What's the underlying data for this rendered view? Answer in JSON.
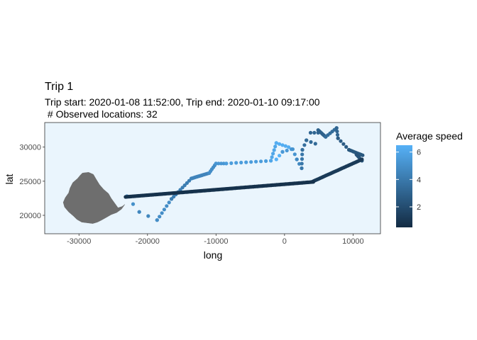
{
  "chart_data": {
    "type": "scatter",
    "title": "Trip 1",
    "subtitle_line1": "Trip start: 2020-01-08 11:52:00, Trip end: 2020-01-10 09:17:00",
    "subtitle_line2": " # Observed locations: 32",
    "xlabel": "long",
    "ylabel": "lat",
    "xlim": [
      -35000,
      14000
    ],
    "ylim": [
      17300,
      33600
    ],
    "x_ticks": [
      -30000,
      -20000,
      -10000,
      0,
      10000
    ],
    "x_tick_labels": [
      "-30000",
      "-20000",
      "-10000",
      "0",
      "10000"
    ],
    "y_ticks": [
      20000,
      25000,
      30000
    ],
    "y_tick_labels": [
      "20000",
      "25000",
      "30000"
    ],
    "grid": false,
    "legend": {
      "title": "Average speed",
      "placement": "right",
      "range": [
        0.5,
        6.5
      ],
      "ticks": [
        2,
        4,
        6
      ],
      "tick_labels": [
        "2",
        "4",
        "6"
      ],
      "color_low": "#132B43",
      "color_high": "#56B1F7"
    },
    "colors": {
      "panel_background": "#EAF5FD",
      "panel_border": "#333333",
      "landmass": "#6E6E6E"
    },
    "landmass_outline": [
      [
        -29500,
        26200
      ],
      [
        -28600,
        26300
      ],
      [
        -27900,
        26000
      ],
      [
        -27500,
        25300
      ],
      [
        -27000,
        24500
      ],
      [
        -26400,
        23800
      ],
      [
        -25700,
        23200
      ],
      [
        -25300,
        22500
      ],
      [
        -24800,
        21800
      ],
      [
        -24300,
        21100
      ],
      [
        -23700,
        21300
      ],
      [
        -23300,
        21600
      ],
      [
        -23800,
        20900
      ],
      [
        -24500,
        20400
      ],
      [
        -25300,
        20100
      ],
      [
        -26000,
        19700
      ],
      [
        -26700,
        19300
      ],
      [
        -27300,
        19000
      ],
      [
        -28000,
        18800
      ],
      [
        -28800,
        18900
      ],
      [
        -29600,
        19000
      ],
      [
        -30300,
        19400
      ],
      [
        -30800,
        19900
      ],
      [
        -31500,
        20500
      ],
      [
        -32100,
        21200
      ],
      [
        -32300,
        21900
      ],
      [
        -32000,
        22600
      ],
      [
        -31500,
        23300
      ],
      [
        -31300,
        24000
      ],
      [
        -30900,
        24800
      ],
      [
        -30200,
        25400
      ],
      [
        -29800,
        25900
      ]
    ],
    "track_segments": [
      {
        "from": [
          -23000,
          22800
        ],
        "to": [
          -21200,
          20500
        ],
        "speed": 5.0,
        "n": 3
      },
      {
        "from": [
          -21200,
          20500
        ],
        "to": [
          -18600,
          19300
        ],
        "speed": 4.6,
        "n": 3
      },
      {
        "from": [
          -18600,
          19300
        ],
        "to": [
          -16500,
          22400
        ],
        "speed": 4.9,
        "n": 7
      },
      {
        "from": [
          -16500,
          22400
        ],
        "to": [
          -13600,
          25400
        ],
        "speed": 4.2,
        "n": 10
      },
      {
        "from": [
          -13600,
          25400
        ],
        "to": [
          -11000,
          26200
        ],
        "speed": 4.5,
        "n": 16
      },
      {
        "from": [
          -11000,
          26200
        ],
        "to": [
          -10000,
          27600
        ],
        "speed": 4.9,
        "n": 6
      },
      {
        "from": [
          -10000,
          27600
        ],
        "to": [
          -8500,
          27600
        ],
        "speed": 5.3,
        "n": 5
      },
      {
        "from": [
          -8500,
          27600
        ],
        "to": [
          -2000,
          28000
        ],
        "speed": 5.6,
        "n": 10
      },
      {
        "from": [
          -2000,
          28000
        ],
        "to": [
          -1200,
          30600
        ],
        "speed": 6.0,
        "n": 6
      },
      {
        "from": [
          -1200,
          30600
        ],
        "to": [
          600,
          30000
        ],
        "speed": 6.3,
        "n": 5
      },
      {
        "from": [
          -1200,
          28200
        ],
        "to": [
          -300,
          29300
        ],
        "speed": 6.5,
        "n": 3
      },
      {
        "from": [
          -300,
          29300
        ],
        "to": [
          1000,
          29700
        ],
        "speed": 5.4,
        "n": 3
      },
      {
        "from": [
          1200,
          29700
        ],
        "to": [
          1800,
          28200
        ],
        "speed": 5.2,
        "n": 3
      },
      {
        "from": [
          1800,
          28200
        ],
        "to": [
          2500,
          26900
        ],
        "speed": 4.7,
        "n": 3
      },
      {
        "from": [
          2500,
          26900
        ],
        "to": [
          2600,
          29600
        ],
        "speed": 3.9,
        "n": 5
      },
      {
        "from": [
          2600,
          29600
        ],
        "to": [
          3200,
          31000
        ],
        "speed": 3.5,
        "n": 3
      },
      {
        "from": [
          3200,
          31000
        ],
        "to": [
          4500,
          30500
        ],
        "speed": 3.3,
        "n": 3
      },
      {
        "from": [
          3800,
          32100
        ],
        "to": [
          4900,
          32100
        ],
        "speed": 3.1,
        "n": 3
      },
      {
        "from": [
          4900,
          32500
        ],
        "to": [
          6000,
          31500
        ],
        "speed": 2.9,
        "n": 8
      },
      {
        "from": [
          6000,
          31500
        ],
        "to": [
          7600,
          32800
        ],
        "speed": 3.4,
        "n": 6
      },
      {
        "from": [
          7600,
          32800
        ],
        "to": [
          7800,
          31300
        ],
        "speed": 3.1,
        "n": 4
      },
      {
        "from": [
          7800,
          31300
        ],
        "to": [
          9400,
          29600
        ],
        "speed": 2.7,
        "n": 5
      },
      {
        "from": [
          9400,
          29600
        ],
        "to": [
          11400,
          28800
        ],
        "speed": 2.5,
        "n": 10
      },
      {
        "from": [
          10500,
          28900
        ],
        "to": [
          11300,
          28000
        ],
        "speed": 2.3,
        "n": 6
      },
      {
        "from": [
          11300,
          28200
        ],
        "to": [
          4200,
          25000
        ],
        "speed": 1.2,
        "n": 44
      },
      {
        "from": [
          4200,
          24900
        ],
        "to": [
          -23200,
          22700
        ],
        "speed": 0.8,
        "n": 170
      }
    ]
  }
}
